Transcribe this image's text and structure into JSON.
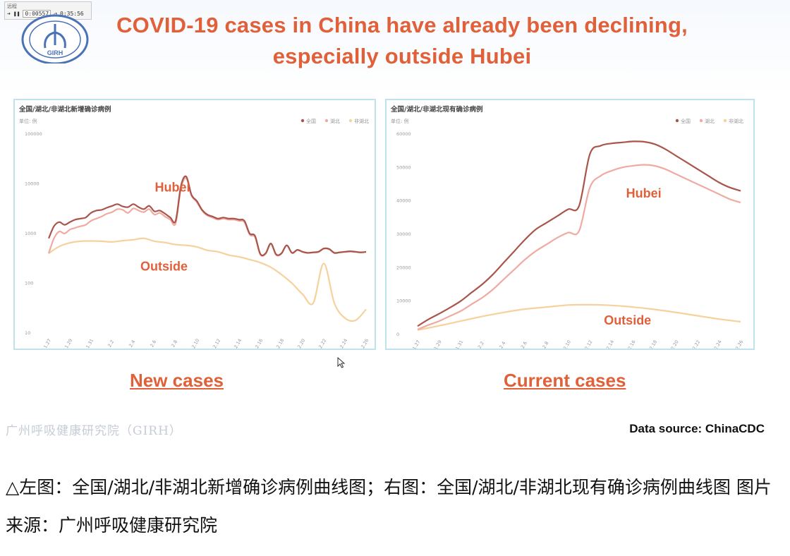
{
  "player": {
    "line1": "远程",
    "counter": "0:00557",
    "time": "0:35:56"
  },
  "logo": {
    "text": "GIRH"
  },
  "title": "COVID-19 cases in China have already been declining, especially outside Hubei",
  "captions": {
    "left": "New cases",
    "right": "Current cases"
  },
  "footer": {
    "institute_cn": "广州呼吸健康研究院（GIRH）",
    "source": "Data source: ChinaCDC"
  },
  "bottom_caption": "△左图：全国/湖北/非湖北新增确诊病例曲线图；右图：全国/湖北/非湖北现有确诊病例曲线图 图片来源：广州呼吸健康研究院",
  "colors": {
    "national": "#a9554a",
    "hubei": "#f0aaa2",
    "outside": "#f6d19c",
    "accent": "#e0603a"
  },
  "chart_data": [
    {
      "type": "line",
      "title": "全国/湖北/非湖北新增确诊病例",
      "unit_label": "单位: 例",
      "yscale": "log",
      "ylim": [
        10,
        100000
      ],
      "yticks": [
        "100000",
        "10000",
        "1000",
        "100",
        "10"
      ],
      "ytick_values": [
        100000,
        10000,
        1000,
        100,
        10
      ],
      "xticks": [
        "1.27",
        "1.29",
        "1.31",
        "2.2",
        "2.4",
        "2.6",
        "2.8",
        "2.10",
        "2.12",
        "2.14",
        "2.16",
        "2.18",
        "2.20",
        "2.22",
        "2.24",
        "2.26"
      ],
      "legend": [
        "全国",
        "湖北",
        "非湖北"
      ],
      "legend_position": "top-right",
      "annotations": [
        {
          "text": "Hubei",
          "x": 11.7,
          "y": 7000
        },
        {
          "text": "Outside",
          "x": 10.9,
          "y": 180
        }
      ],
      "series": [
        {
          "name": "全国",
          "color_key": "national",
          "x": [
            0,
            0.5,
            1,
            1.5,
            2,
            2.5,
            3,
            3.5,
            4,
            4.5,
            5,
            5.5,
            6,
            6.5,
            7,
            7.5,
            8,
            8.5,
            9,
            9.5,
            10,
            10.5,
            11,
            11.5,
            12,
            12.5,
            13,
            13.5,
            14,
            14.5,
            15,
            15.5,
            16,
            16.5,
            17,
            17.5,
            18,
            18.5,
            19,
            19.5,
            20,
            20.5,
            21,
            21.5,
            22,
            22.5,
            23,
            23.5,
            24,
            24.5,
            25,
            25.5,
            26,
            26.5,
            27,
            27.5,
            28,
            28.5,
            29,
            29.5,
            30
          ],
          "y": [
            800,
            1400,
            1700,
            1500,
            1700,
            1900,
            2000,
            2100,
            2600,
            2900,
            3000,
            3300,
            3600,
            3900,
            3500,
            3400,
            3900,
            3400,
            3100,
            3600,
            2800,
            2900,
            2500,
            2100,
            1800,
            9000,
            14000,
            6000,
            4500,
            3000,
            2400,
            2200,
            2000,
            2100,
            2000,
            2000,
            1900,
            1800,
            1000,
            900,
            390,
            400,
            630,
            380,
            400,
            580,
            410,
            470,
            430,
            410,
            420,
            430,
            500,
            490,
            410,
            420,
            430,
            440,
            430,
            420,
            430
          ]
        },
        {
          "name": "湖北",
          "color_key": "hubei",
          "x": [
            0,
            0.5,
            1,
            1.5,
            2,
            2.5,
            3,
            3.5,
            4,
            4.5,
            5,
            5.5,
            6,
            6.5,
            7,
            7.5,
            8,
            8.5,
            9,
            9.5,
            10,
            10.5,
            11,
            11.5,
            12,
            12.5,
            13,
            13.5,
            14,
            14.5,
            15,
            15.5,
            16,
            16.5,
            17,
            17.5,
            18,
            18.5,
            19,
            19.5,
            20,
            20.5,
            21,
            21.5,
            22,
            22.5,
            23,
            23.5,
            24,
            24.5,
            25,
            25.5,
            26,
            26.5,
            27,
            27.5,
            28,
            28.5,
            29,
            29.5,
            30
          ],
          "y": [
            400,
            800,
            1100,
            1000,
            1200,
            1300,
            1400,
            1500,
            1800,
            2000,
            2200,
            2500,
            2700,
            3100,
            3000,
            2600,
            3200,
            2900,
            2700,
            3100,
            2400,
            2600,
            2200,
            1900,
            1600,
            8000,
            13000,
            5800,
            4300,
            2900,
            2300,
            2100,
            1900,
            2000,
            1900,
            1900,
            1800,
            1700,
            950,
            850,
            380,
            390,
            620,
            370,
            395,
            575,
            405,
            465,
            425,
            405,
            415,
            425,
            495,
            485,
            405,
            415,
            425,
            435,
            425,
            415,
            425
          ]
        },
        {
          "name": "非湖北",
          "color_key": "outside",
          "x": [
            0,
            1,
            2,
            3,
            4,
            5,
            6,
            7,
            8,
            9,
            10,
            11,
            12,
            13,
            14,
            15,
            16,
            17,
            18,
            19,
            20,
            21,
            22,
            23,
            24,
            25,
            26,
            27,
            28,
            29,
            30
          ],
          "y": [
            400,
            550,
            650,
            700,
            710,
            700,
            680,
            720,
            750,
            800,
            700,
            660,
            600,
            580,
            540,
            460,
            430,
            370,
            340,
            300,
            260,
            210,
            150,
            100,
            60,
            40,
            250,
            40,
            20,
            18,
            30
          ]
        }
      ]
    },
    {
      "type": "line",
      "title": "全国/湖北/非湖北现有确诊病例",
      "unit_label": "单位: 例",
      "ylim": [
        0,
        60000
      ],
      "yticks": [
        "60000",
        "50000",
        "40000",
        "30000",
        "20000",
        "10000",
        "0"
      ],
      "ytick_values": [
        60000,
        50000,
        40000,
        30000,
        20000,
        10000,
        0
      ],
      "xticks": [
        "1.27",
        "1.29",
        "1.31",
        "2.2",
        "2.4",
        "2.6",
        "2.8",
        "2.10",
        "2.12",
        "2.14",
        "2.16",
        "2.18",
        "2.20",
        "2.22",
        "2.24",
        "2.26"
      ],
      "legend": [
        "全国",
        "湖北",
        "非湖北"
      ],
      "legend_position": "top-right",
      "annotations": [
        {
          "text": "Hubei",
          "x": 21,
          "y": 41000
        },
        {
          "text": "Outside",
          "x": 19.5,
          "y": 3000
        }
      ],
      "series": [
        {
          "name": "全国",
          "color_key": "national",
          "x": [
            0,
            2,
            4,
            6,
            8,
            10,
            12,
            14,
            16,
            18,
            19,
            20,
            21,
            22,
            24,
            26,
            28,
            30
          ],
          "y": [
            2500,
            6000,
            11000,
            17000,
            24000,
            30000,
            35000,
            38000,
            55000,
            57000,
            57500,
            57800,
            57500,
            56000,
            52000,
            48000,
            44000,
            43000
          ],
          "x_full": [
            0,
            1,
            2,
            3,
            4,
            5,
            6,
            7,
            8,
            9,
            10,
            11,
            12,
            13,
            14,
            15,
            16,
            17,
            18,
            19,
            20,
            21,
            22,
            23,
            24,
            25,
            26,
            27,
            28,
            29,
            30
          ],
          "y_full": [
            2500,
            4500,
            6200,
            8000,
            10000,
            12500,
            15000,
            18000,
            21500,
            25000,
            28500,
            31500,
            33500,
            35500,
            37500,
            38500,
            54000,
            56500,
            57200,
            57500,
            57800,
            57700,
            57000,
            55500,
            53500,
            51500,
            49500,
            47500,
            45500,
            44000,
            43000
          ]
        },
        {
          "name": "湖北",
          "color_key": "hubei",
          "x_full": [
            0,
            1,
            2,
            3,
            4,
            5,
            6,
            7,
            8,
            9,
            10,
            11,
            12,
            13,
            14,
            15,
            16,
            17,
            18,
            19,
            20,
            21,
            22,
            23,
            24,
            25,
            26,
            27,
            28,
            29,
            30
          ],
          "y_full": [
            1500,
            2800,
            4000,
            5500,
            7000,
            9000,
            11000,
            13500,
            16500,
            19500,
            22500,
            25000,
            27000,
            29000,
            30500,
            31000,
            44000,
            47500,
            49000,
            50000,
            50500,
            50800,
            50500,
            49500,
            48000,
            46500,
            45000,
            43500,
            42000,
            40500,
            39500
          ]
        },
        {
          "name": "非湖北",
          "color_key": "outside",
          "x_full": [
            0,
            2,
            4,
            6,
            8,
            10,
            12,
            14,
            16,
            18,
            20,
            22,
            24,
            26,
            28,
            30
          ],
          "y_full": [
            1300,
            2600,
            4000,
            5400,
            6600,
            7600,
            8200,
            8800,
            8900,
            8700,
            8200,
            7500,
            6600,
            5600,
            4600,
            3800
          ]
        }
      ]
    }
  ]
}
